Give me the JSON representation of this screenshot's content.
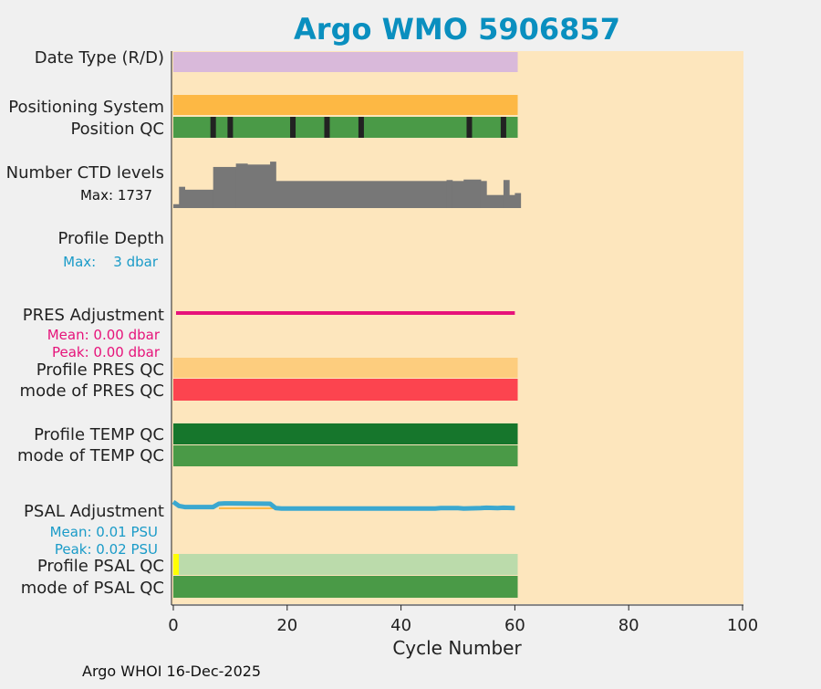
{
  "title": "Argo WMO 5906857",
  "footer": "Argo WHOI 16-Dec-2025",
  "colors": {
    "title": "#0a8fbf",
    "plot_bg": "#fde6bd",
    "date_type": "#d9b9da",
    "positioning": "#fdb844",
    "position_qc_good": "#4a9a47",
    "position_qc_bad": "#222222",
    "ctd_levels": "#777777",
    "pres_adjustment": "#e6137a",
    "profile_pres_qc": "#fdcd7e",
    "mode_pres_qc": "#fc444f",
    "profile_temp_qc": "#16762c",
    "mode_temp_qc": "#4a9a47",
    "psal_adjustment": "#3ba8d0",
    "psal_adjustment_peak": "#fdb844",
    "profile_psal_qc": "#bbdbab",
    "profile_psal_qc_first": "#ffff00",
    "mode_psal_qc": "#4a9a47",
    "annotation_blue": "#1a9bc8",
    "annotation_pink": "#e6137a"
  },
  "labels": {
    "date_type": "Date Type (R/D)",
    "positioning": "Positioning System",
    "position_qc": "Position QC",
    "ctd_levels": "Number CTD levels",
    "ctd_max": "Max: 1737",
    "profile_depth": "Profile Depth",
    "depth_max": "Max:    3 dbar",
    "pres_adjustment": "PRES Adjustment",
    "pres_mean": "Mean: 0.00 dbar",
    "pres_peak": "Peak: 0.00 dbar",
    "profile_pres_qc": "Profile PRES QC",
    "mode_pres_qc": "mode of PRES QC",
    "profile_temp_qc": "Profile TEMP QC",
    "mode_temp_qc": "mode of TEMP QC",
    "psal_adjustment": "PSAL Adjustment",
    "psal_mean": "Mean: 0.01 PSU",
    "psal_peak": "Peak: 0.02 PSU",
    "profile_psal_qc": "Profile PSAL QC",
    "mode_psal_qc": "mode of PSAL QC"
  },
  "chart_data": {
    "type": "bar",
    "title": "Argo WMO 5906857",
    "xlabel": "Cycle Number",
    "xlim": [
      0,
      100
    ],
    "xticks": [
      0,
      20,
      40,
      60,
      80,
      100
    ],
    "cycles": [
      0,
      60
    ],
    "position_qc_bad_cycles": [
      7,
      10,
      21,
      27,
      33,
      52,
      58
    ],
    "ctd_levels": {
      "ymax": 1737,
      "values": [
        {
          "x": [
            0,
            1
          ],
          "v": 0.08
        },
        {
          "x": [
            1,
            2
          ],
          "v": 0.44
        },
        {
          "x": [
            2,
            7
          ],
          "v": 0.38
        },
        {
          "x": [
            7,
            11
          ],
          "v": 0.85
        },
        {
          "x": [
            11,
            13
          ],
          "v": 0.92
        },
        {
          "x": [
            13,
            17
          ],
          "v": 0.9
        },
        {
          "x": [
            17,
            18
          ],
          "v": 0.96
        },
        {
          "x": [
            18,
            48
          ],
          "v": 0.56
        },
        {
          "x": [
            48,
            49
          ],
          "v": 0.58
        },
        {
          "x": [
            49,
            51
          ],
          "v": 0.56
        },
        {
          "x": [
            51,
            54
          ],
          "v": 0.59
        },
        {
          "x": [
            54,
            55
          ],
          "v": 0.56
        },
        {
          "x": [
            55,
            58
          ],
          "v": 0.27
        },
        {
          "x": [
            58,
            59
          ],
          "v": 0.58
        },
        {
          "x": [
            59,
            60
          ],
          "v": 0.27
        },
        {
          "x": [
            60,
            61
          ],
          "v": 0.31
        }
      ]
    },
    "pres_adjustment": {
      "mean": 0.0,
      "peak": 0.0,
      "x": [
        0,
        60
      ]
    },
    "psal_adjustment": {
      "mean": 0.01,
      "peak": 0.02,
      "line": [
        [
          0,
          0.0
        ],
        [
          1,
          0.55
        ],
        [
          2,
          0.7
        ],
        [
          7,
          0.7
        ],
        [
          8,
          0.25
        ],
        [
          9,
          0.2
        ],
        [
          17,
          0.25
        ],
        [
          18,
          0.85
        ],
        [
          19,
          0.9
        ],
        [
          46,
          0.9
        ],
        [
          47,
          0.85
        ],
        [
          50,
          0.85
        ],
        [
          51,
          0.9
        ],
        [
          54,
          0.85
        ],
        [
          55,
          0.8
        ],
        [
          57,
          0.85
        ],
        [
          58,
          0.8
        ],
        [
          60,
          0.85
        ]
      ]
    }
  }
}
